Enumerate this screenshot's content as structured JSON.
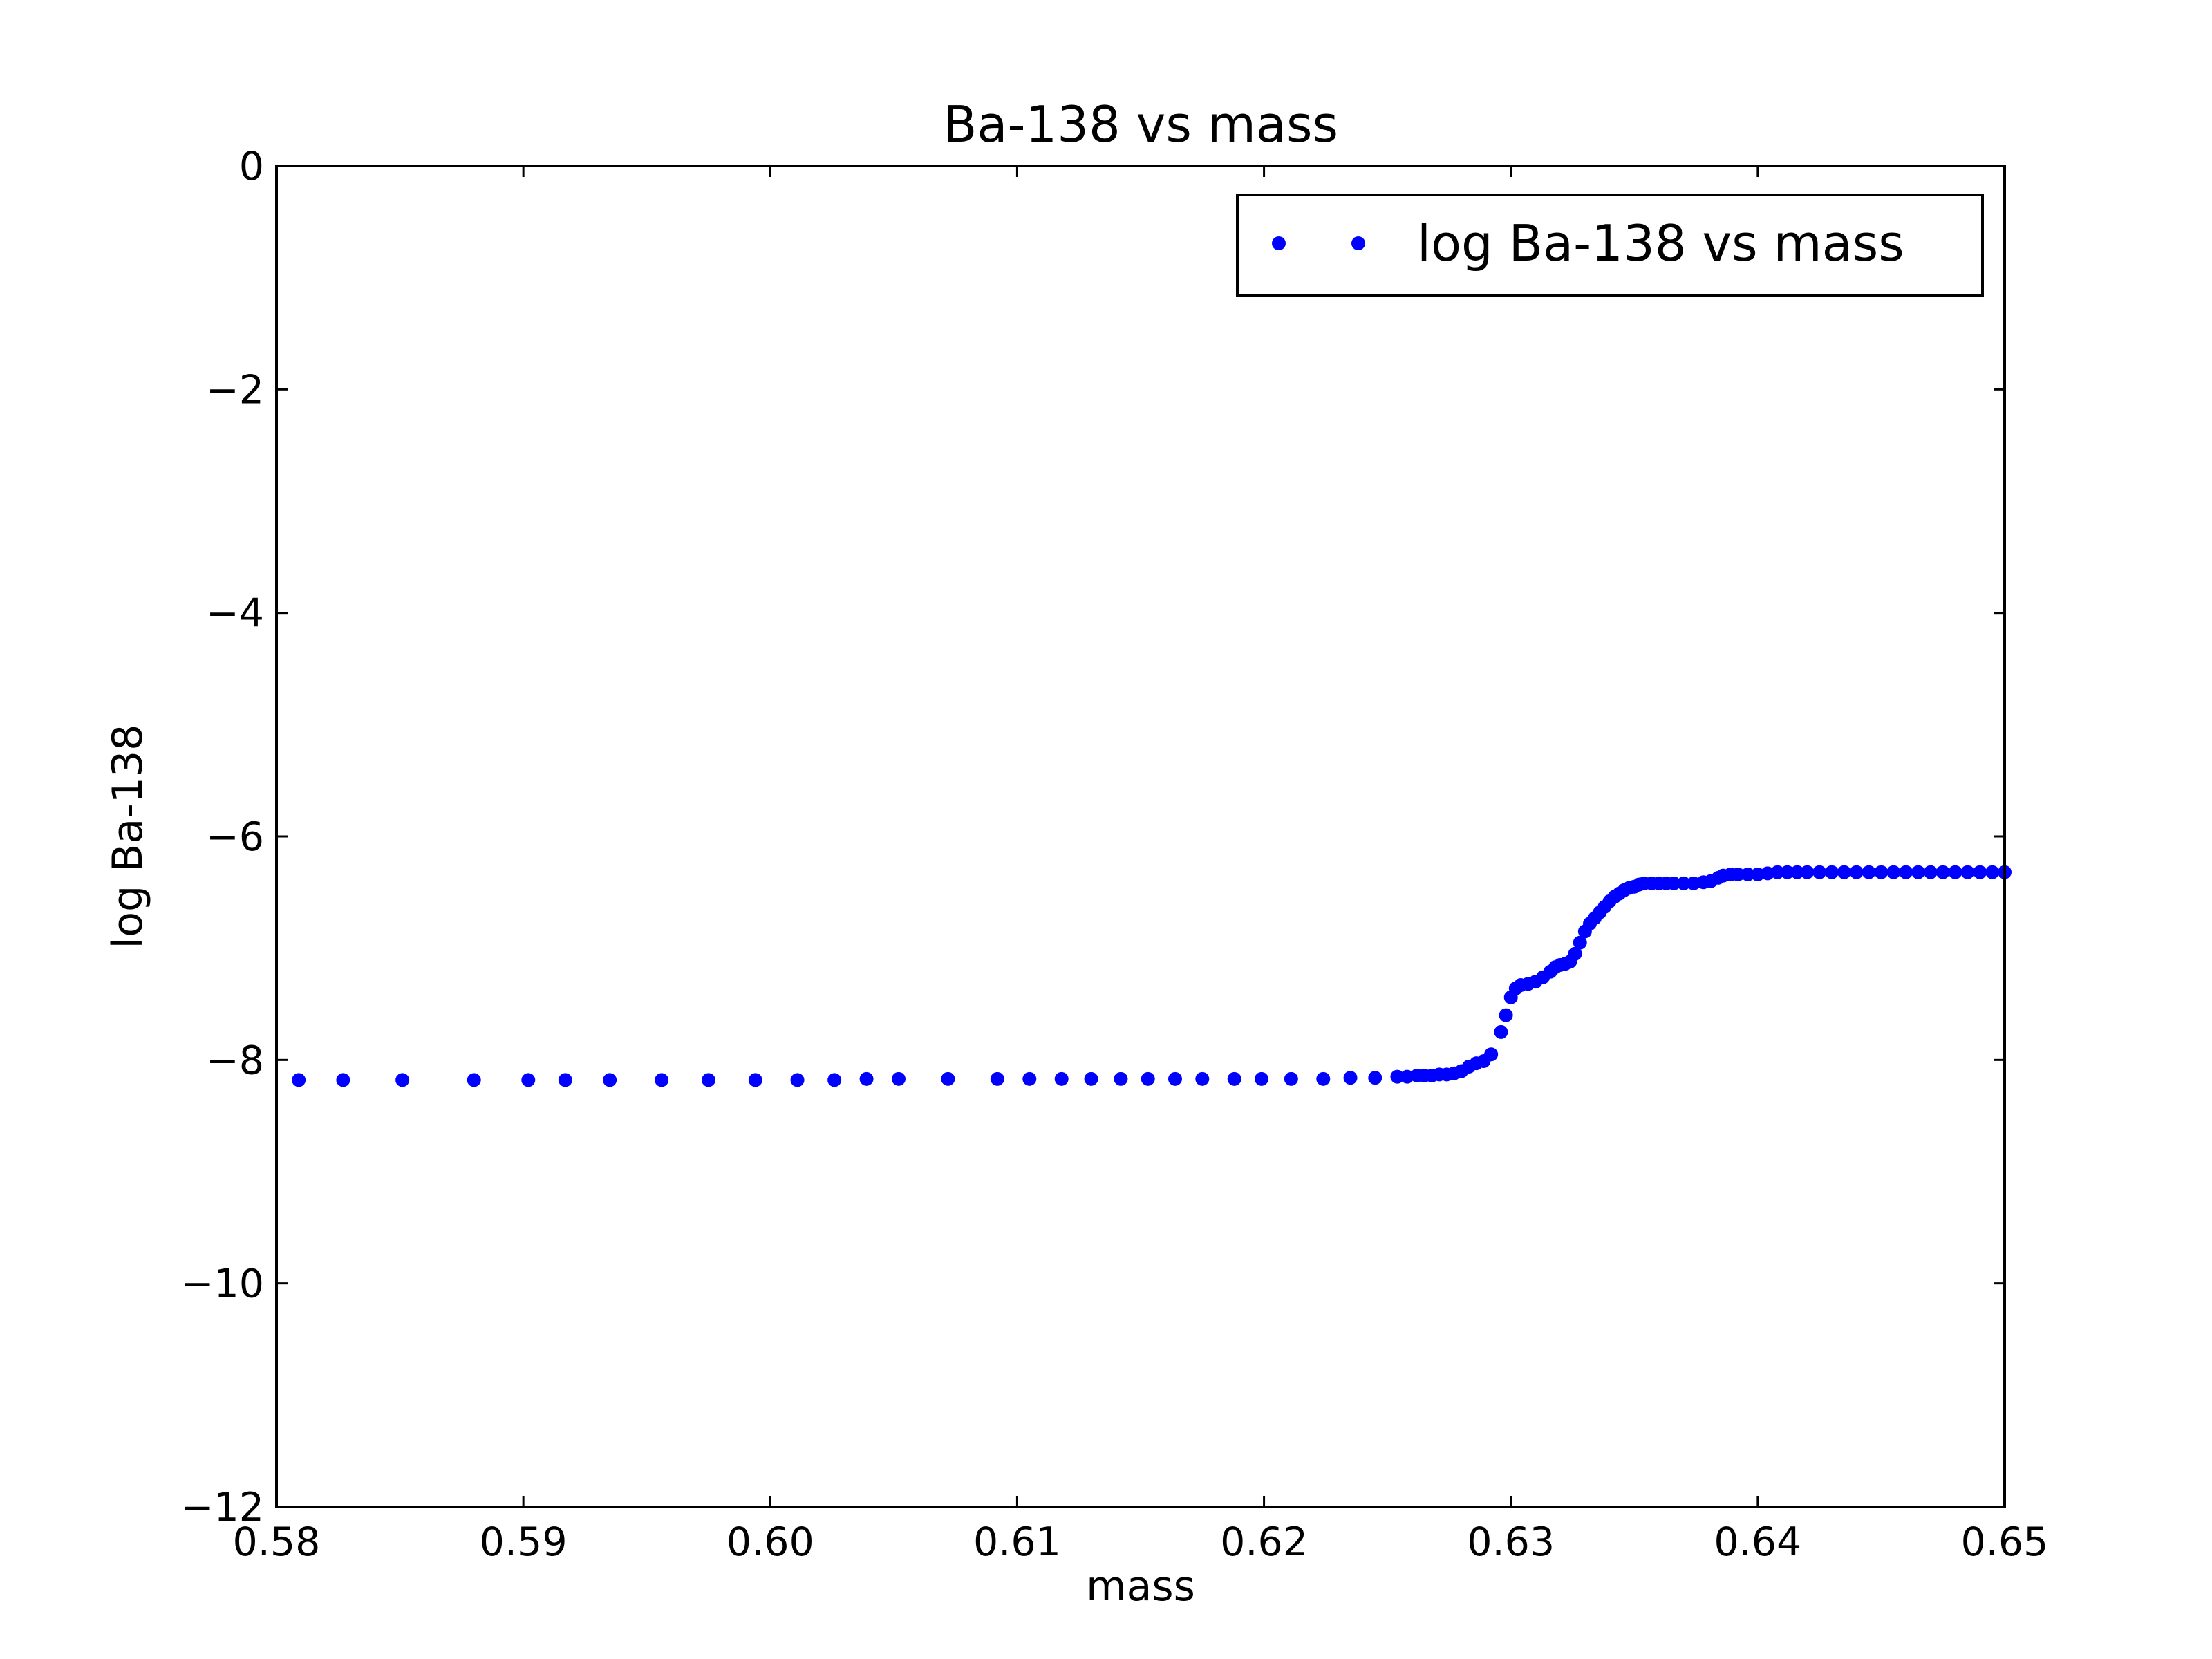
{
  "chart_data": {
    "type": "scatter",
    "title": "Ba-138 vs mass",
    "xlabel": "mass",
    "ylabel": "log Ba-138",
    "xlim": [
      0.58,
      0.65
    ],
    "ylim": [
      -12,
      0
    ],
    "x_ticks": [
      "0.58",
      "0.59",
      "0.60",
      "0.61",
      "0.62",
      "0.63",
      "0.64",
      "0.65"
    ],
    "x_tick_values": [
      0.58,
      0.59,
      0.6,
      0.61,
      0.62,
      0.63,
      0.64,
      0.65
    ],
    "y_ticks": [
      "0",
      "−2",
      "−4",
      "−6",
      "−8",
      "−10",
      "−12"
    ],
    "y_tick_values": [
      0,
      -2,
      -4,
      -6,
      -8,
      -10,
      -12
    ],
    "grid": false,
    "legend_position": "top-right",
    "marker_color": "#0000ff",
    "series": [
      {
        "name": "log Ba-138 vs mass",
        "x": [
          0.5809,
          0.5827,
          0.5851,
          0.588,
          0.5902,
          0.5917,
          0.5935,
          0.5956,
          0.5975,
          0.5994,
          0.6011,
          0.6026,
          0.6039,
          0.6052,
          0.6072,
          0.6092,
          0.6105,
          0.6118,
          0.613,
          0.6142,
          0.6153,
          0.6164,
          0.6175,
          0.6188,
          0.6199,
          0.6211,
          0.6224,
          0.6235,
          0.6245,
          0.6254,
          0.6258,
          0.6262,
          0.6265,
          0.6268,
          0.6271,
          0.6274,
          0.6277,
          0.628,
          0.6283,
          0.6286,
          0.6289,
          0.6292,
          0.6296,
          0.6298,
          0.63,
          0.6302,
          0.6304,
          0.6307,
          0.631,
          0.6313,
          0.6316,
          0.6318,
          0.632,
          0.6322,
          0.6324,
          0.6326,
          0.6328,
          0.633,
          0.6332,
          0.6334,
          0.6336,
          0.6338,
          0.634,
          0.6342,
          0.6344,
          0.6346,
          0.6348,
          0.635,
          0.6352,
          0.6354,
          0.6357,
          0.636,
          0.6363,
          0.6366,
          0.637,
          0.6374,
          0.6378,
          0.6381,
          0.6384,
          0.6386,
          0.6389,
          0.6392,
          0.6396,
          0.64,
          0.6404,
          0.6408,
          0.6412,
          0.6416,
          0.642,
          0.6425,
          0.643,
          0.6435,
          0.644,
          0.6445,
          0.645,
          0.6455,
          0.646,
          0.6465,
          0.647,
          0.6475,
          0.648,
          0.6485,
          0.649,
          0.6495,
          0.65
        ],
        "y": [
          -8.18,
          -8.18,
          -8.18,
          -8.18,
          -8.18,
          -8.18,
          -8.18,
          -8.18,
          -8.18,
          -8.18,
          -8.18,
          -8.18,
          -8.17,
          -8.17,
          -8.17,
          -8.17,
          -8.17,
          -8.17,
          -8.17,
          -8.17,
          -8.17,
          -8.17,
          -8.17,
          -8.17,
          -8.17,
          -8.17,
          -8.17,
          -8.16,
          -8.16,
          -8.15,
          -8.15,
          -8.14,
          -8.14,
          -8.14,
          -8.13,
          -8.13,
          -8.12,
          -8.1,
          -8.06,
          -8.03,
          -8.01,
          -7.95,
          -7.75,
          -7.6,
          -7.44,
          -7.36,
          -7.33,
          -7.32,
          -7.3,
          -7.26,
          -7.21,
          -7.17,
          -7.15,
          -7.14,
          -7.12,
          -7.05,
          -6.95,
          -6.85,
          -6.78,
          -6.73,
          -6.68,
          -6.63,
          -6.58,
          -6.54,
          -6.51,
          -6.48,
          -6.46,
          -6.45,
          -6.43,
          -6.42,
          -6.42,
          -6.42,
          -6.42,
          -6.42,
          -6.42,
          -6.42,
          -6.41,
          -6.4,
          -6.37,
          -6.35,
          -6.34,
          -6.34,
          -6.34,
          -6.34,
          -6.33,
          -6.32,
          -6.32,
          -6.32,
          -6.32,
          -6.32,
          -6.32,
          -6.32,
          -6.32,
          -6.32,
          -6.32,
          -6.32,
          -6.32,
          -6.32,
          -6.32,
          -6.32,
          -6.32,
          -6.32,
          -6.32,
          -6.32,
          -6.32
        ]
      }
    ]
  }
}
